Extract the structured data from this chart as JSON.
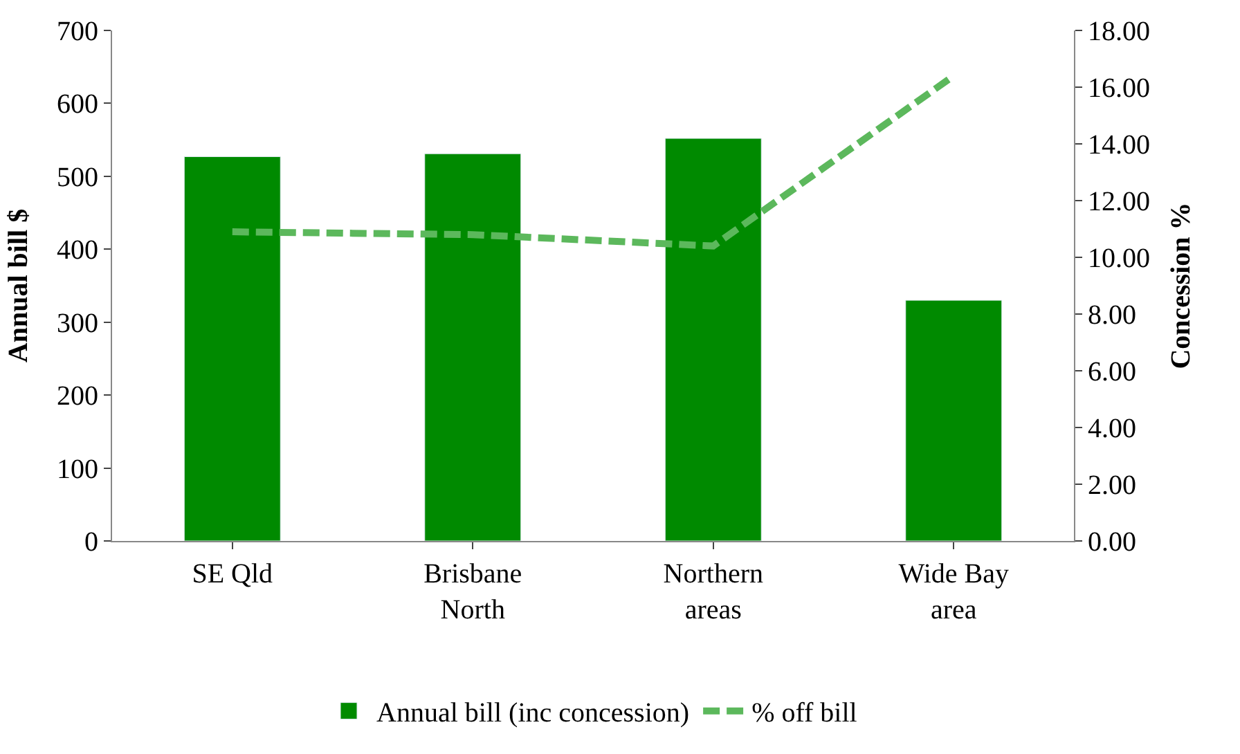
{
  "chart_data": {
    "type": "bar",
    "categories": [
      "SE Qld",
      "Brisbane\nNorth",
      "Northern\nareas",
      "Wide Bay\narea"
    ],
    "series": [
      {
        "name": "Annual bill (inc concession)",
        "color": "#008a00",
        "values": [
          527,
          531,
          552,
          330
        ]
      },
      {
        "name": "% off bill",
        "type": "line",
        "axis": "y2",
        "color": "#5cb85c",
        "line_style": "dashed",
        "values": [
          10.9,
          10.8,
          10.4,
          16.4
        ]
      }
    ],
    "ylabel": "Annual bill $",
    "y2label": "Concession %",
    "ylim": [
      0,
      700
    ],
    "yticks": [
      0,
      100,
      200,
      300,
      400,
      500,
      600,
      700
    ],
    "y2lim": [
      0,
      18
    ],
    "y2ticks": [
      {
        "value": 0,
        "label": "0.00"
      },
      {
        "value": 2,
        "label": "2.00"
      },
      {
        "value": 4,
        "label": "4.00"
      },
      {
        "value": 6,
        "label": "6.00"
      },
      {
        "value": 8,
        "label": "8.00"
      },
      {
        "value": 10,
        "label": "10.00"
      },
      {
        "value": 12,
        "label": "12.00"
      },
      {
        "value": 14,
        "label": "14.00"
      },
      {
        "value": 16,
        "label": "16.00"
      },
      {
        "value": 18,
        "label": "18.00"
      }
    ],
    "legend": "bottom",
    "marker": "none"
  }
}
